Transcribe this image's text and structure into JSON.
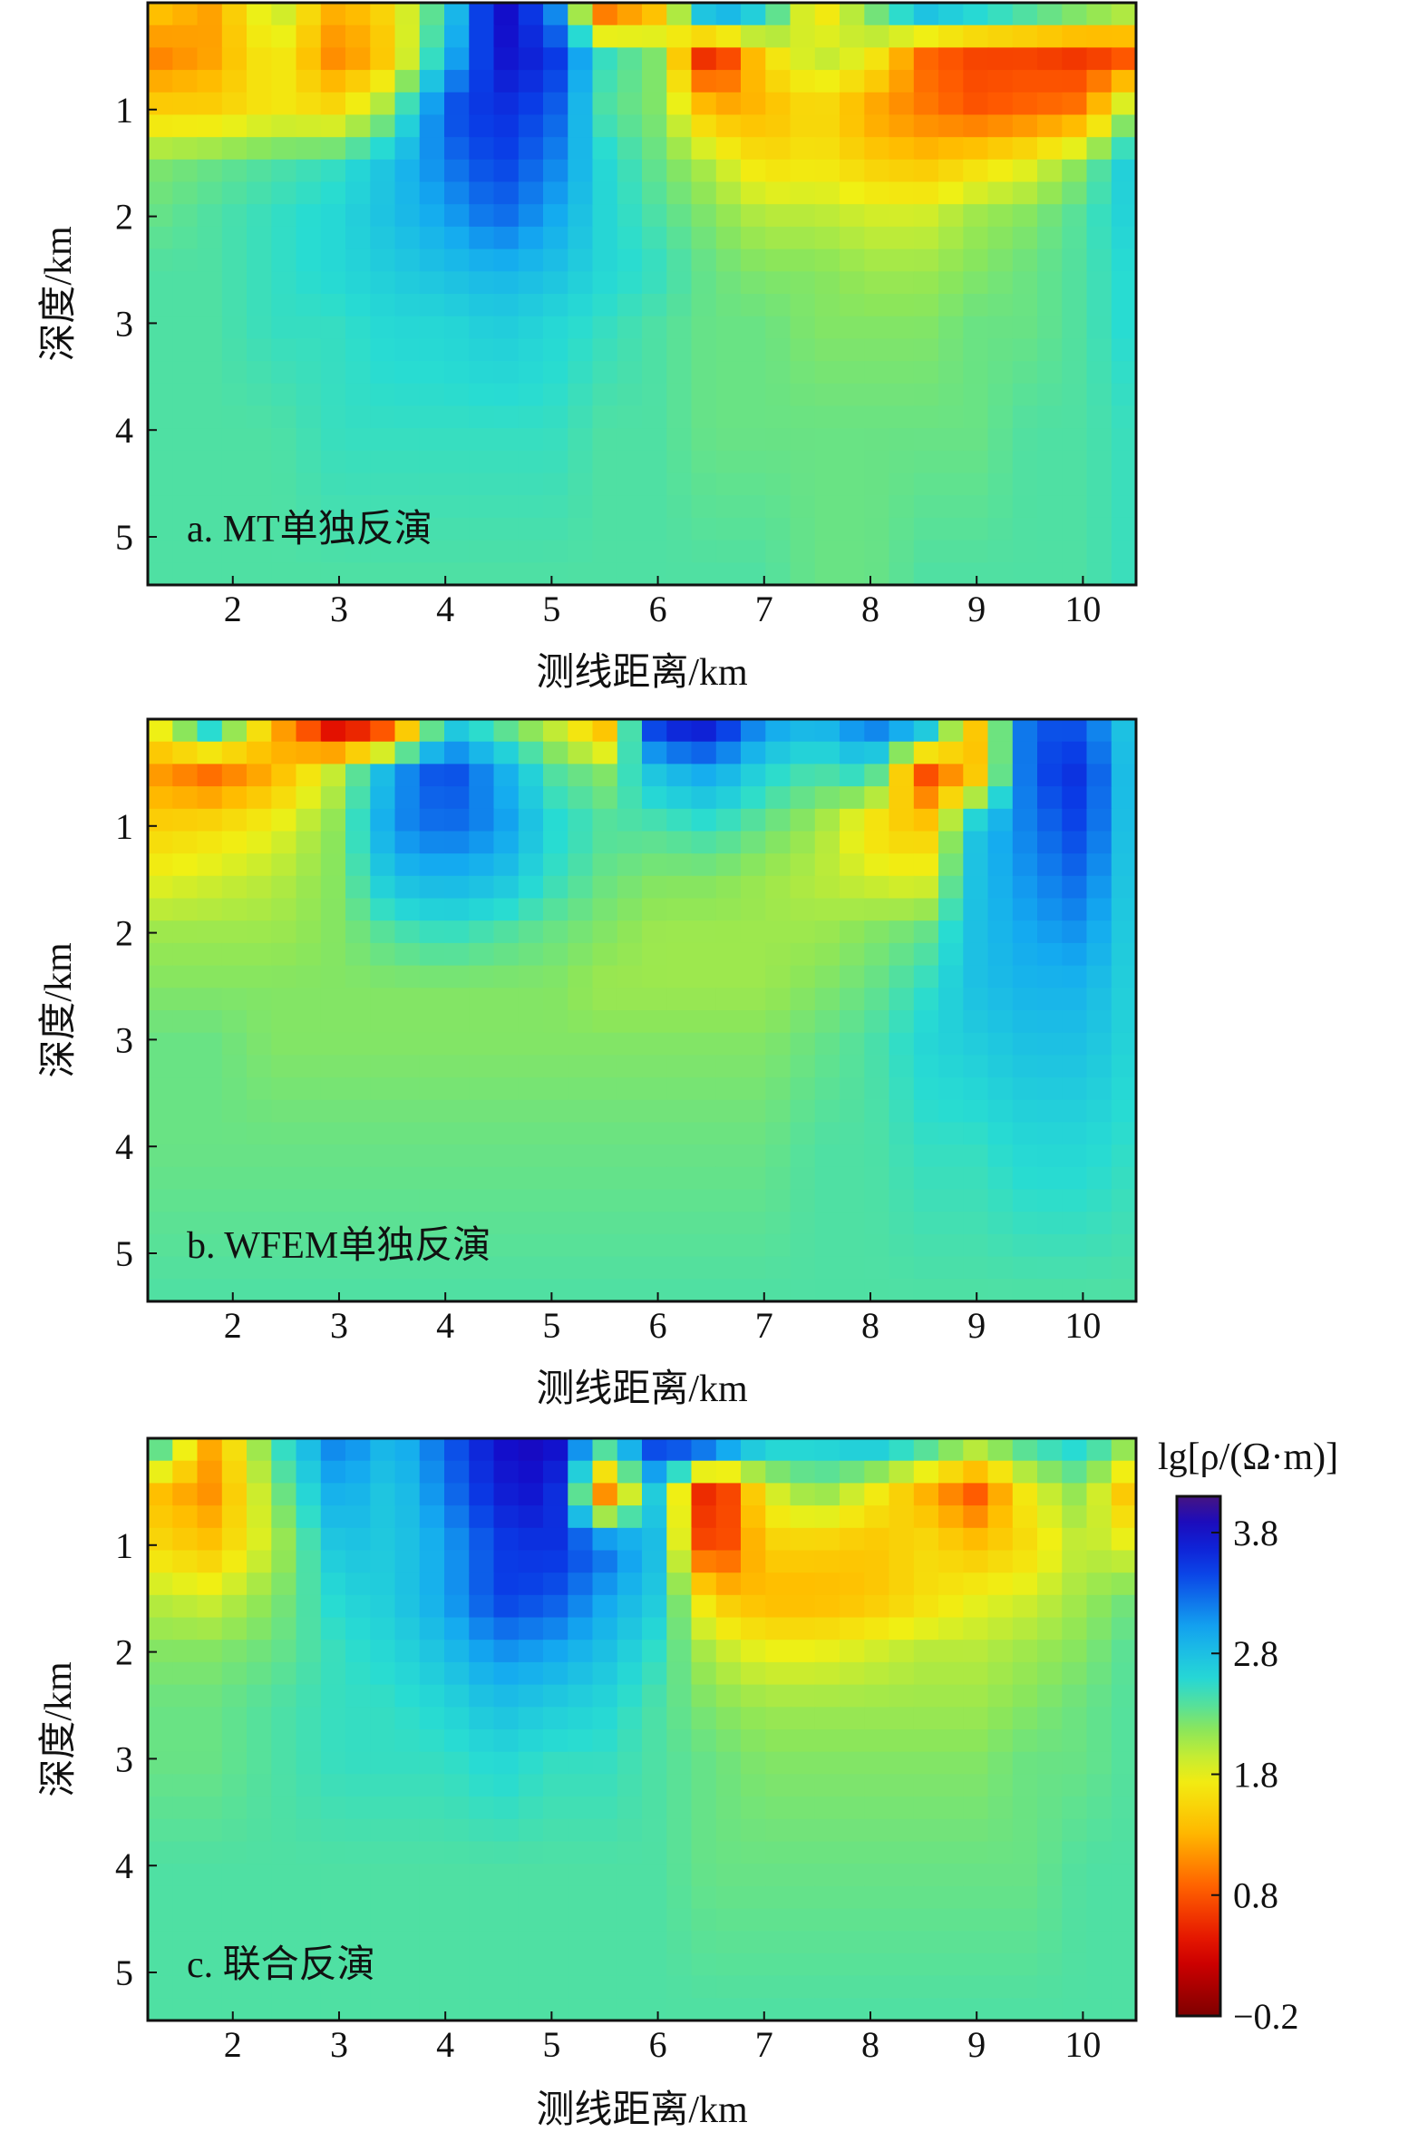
{
  "chart_data": {
    "type": "heatmap",
    "colorbar": {
      "title": "lg[ρ/(Ω·m)]",
      "range": [
        -0.2,
        4.1
      ],
      "ticks": [
        3.8,
        2.8,
        1.8,
        0.8,
        -0.2
      ],
      "tick_labels": [
        "3.8",
        "2.8",
        "1.8",
        "0.8",
        "−0.2"
      ],
      "colormap": "jet-reversed (low = dark red, high = dark blue)"
    },
    "panels": [
      {
        "label": "a. MT单独反演",
        "xlabel": "测线距离/km",
        "ylabel": "深度/km",
        "xlim": [
          1.2,
          10.5
        ],
        "ylim": [
          0,
          5.45
        ],
        "x_ticks": [
          2,
          3,
          4,
          5,
          6,
          7,
          8,
          9,
          10
        ],
        "y_ticks": [
          1,
          2,
          3,
          4,
          5
        ],
        "x_nodes": [
          1.2,
          1.8,
          2.4,
          3.0,
          3.5,
          4.0,
          4.5,
          5.0,
          5.5,
          6.0,
          6.5,
          7.0,
          7.5,
          8.0,
          8.5,
          9.0,
          9.5,
          10.0,
          10.5
        ],
        "z_nodes": [
          0.1,
          0.5,
          1.0,
          1.5,
          2.0,
          2.5,
          3.0,
          4.0,
          5.4
        ],
        "values": [
          [
            1.4,
            1.2,
            2.0,
            1.2,
            1.6,
            2.6,
            3.9,
            3.3,
            1.0,
            1.4,
            3.0,
            2.6,
            1.6,
            2.2,
            2.8,
            2.6,
            2.4,
            2.2,
            2.0
          ],
          [
            1.0,
            1.2,
            1.8,
            1.0,
            1.5,
            2.8,
            3.8,
            3.6,
            2.5,
            2.2,
            0.3,
            1.6,
            2.0,
            1.8,
            0.9,
            0.7,
            0.7,
            0.6,
            0.8
          ],
          [
            1.5,
            1.5,
            1.7,
            1.6,
            2.2,
            3.4,
            3.6,
            3.4,
            2.4,
            2.2,
            1.3,
            1.3,
            1.6,
            1.2,
            1.0,
            0.8,
            0.9,
            1.0,
            2.3
          ],
          [
            2.2,
            2.3,
            2.4,
            2.5,
            2.8,
            3.2,
            3.5,
            3.2,
            2.6,
            2.3,
            2.0,
            1.6,
            1.7,
            1.5,
            1.4,
            1.6,
            1.8,
            2.2,
            2.8
          ],
          [
            2.3,
            2.4,
            2.5,
            2.6,
            2.8,
            3.0,
            3.3,
            3.0,
            2.6,
            2.4,
            2.2,
            2.0,
            2.0,
            1.9,
            1.9,
            2.1,
            2.2,
            2.4,
            2.7
          ],
          [
            2.4,
            2.4,
            2.5,
            2.6,
            2.7,
            2.8,
            2.9,
            2.8,
            2.6,
            2.5,
            2.3,
            2.2,
            2.2,
            2.1,
            2.1,
            2.2,
            2.3,
            2.4,
            2.6
          ],
          [
            2.4,
            2.4,
            2.5,
            2.5,
            2.6,
            2.6,
            2.7,
            2.6,
            2.5,
            2.4,
            2.3,
            2.3,
            2.2,
            2.2,
            2.2,
            2.3,
            2.3,
            2.4,
            2.6
          ],
          [
            2.4,
            2.4,
            2.4,
            2.5,
            2.5,
            2.5,
            2.5,
            2.5,
            2.4,
            2.4,
            2.3,
            2.3,
            2.3,
            2.3,
            2.3,
            2.3,
            2.4,
            2.4,
            2.5
          ],
          [
            2.4,
            2.4,
            2.4,
            2.4,
            2.4,
            2.4,
            2.4,
            2.4,
            2.4,
            2.4,
            2.4,
            2.4,
            2.3,
            2.3,
            2.4,
            2.4,
            2.4,
            2.4,
            2.5
          ]
        ]
      },
      {
        "label": "b. WFEM单独反演",
        "xlabel": "测线距离/km",
        "ylabel": "深度/km",
        "xlim": [
          1.2,
          10.5
        ],
        "ylim": [
          0,
          5.45
        ],
        "x_ticks": [
          2,
          3,
          4,
          5,
          6,
          7,
          8,
          9,
          10
        ],
        "y_ticks": [
          1,
          2,
          3,
          4,
          5
        ],
        "x_nodes": [
          1.2,
          1.8,
          2.4,
          3.0,
          3.5,
          4.0,
          4.5,
          5.0,
          5.5,
          6.0,
          6.5,
          7.0,
          7.5,
          8.0,
          8.5,
          9.0,
          9.5,
          10.0,
          10.5
        ],
        "z_nodes": [
          0.1,
          0.5,
          1.0,
          1.5,
          2.0,
          2.5,
          3.0,
          4.0,
          5.4
        ],
        "values": [
          [
            1.6,
            2.6,
            1.3,
            0.3,
            0.9,
            2.8,
            2.4,
            2.0,
            1.4,
            3.6,
            3.7,
            3.0,
            2.8,
            3.2,
            2.8,
            1.4,
            3.4,
            3.4,
            2.6
          ],
          [
            1.2,
            0.9,
            1.3,
            2.0,
            3.0,
            3.5,
            3.0,
            2.4,
            2.2,
            2.8,
            3.0,
            2.6,
            2.4,
            2.6,
            0.7,
            1.4,
            3.4,
            3.6,
            2.6
          ],
          [
            1.5,
            1.6,
            1.8,
            2.2,
            3.1,
            3.3,
            3.1,
            2.6,
            2.4,
            2.4,
            2.5,
            2.3,
            2.1,
            1.6,
            1.4,
            2.8,
            3.2,
            3.5,
            2.6
          ],
          [
            1.8,
            1.9,
            2.0,
            2.2,
            2.8,
            2.9,
            2.8,
            2.5,
            2.3,
            2.2,
            2.2,
            2.1,
            2.0,
            1.9,
            1.8,
            2.8,
            3.1,
            3.3,
            2.6
          ],
          [
            2.1,
            2.1,
            2.1,
            2.2,
            2.4,
            2.5,
            2.4,
            2.3,
            2.2,
            2.1,
            2.1,
            2.1,
            2.1,
            2.2,
            2.3,
            2.8,
            3.0,
            3.1,
            2.6
          ],
          [
            2.2,
            2.2,
            2.2,
            2.2,
            2.2,
            2.2,
            2.2,
            2.2,
            2.1,
            2.1,
            2.1,
            2.1,
            2.2,
            2.3,
            2.5,
            2.8,
            2.9,
            2.9,
            2.6
          ],
          [
            2.3,
            2.3,
            2.2,
            2.2,
            2.2,
            2.2,
            2.2,
            2.2,
            2.2,
            2.2,
            2.2,
            2.2,
            2.3,
            2.4,
            2.6,
            2.7,
            2.8,
            2.8,
            2.6
          ],
          [
            2.3,
            2.3,
            2.3,
            2.3,
            2.3,
            2.3,
            2.3,
            2.3,
            2.3,
            2.3,
            2.3,
            2.3,
            2.4,
            2.4,
            2.5,
            2.5,
            2.6,
            2.6,
            2.5
          ],
          [
            2.4,
            2.4,
            2.4,
            2.4,
            2.4,
            2.4,
            2.4,
            2.4,
            2.4,
            2.4,
            2.4,
            2.4,
            2.4,
            2.4,
            2.4,
            2.4,
            2.4,
            2.4,
            2.4
          ]
        ]
      },
      {
        "label": "c. 联合反演",
        "xlabel": "测线距离/km",
        "ylabel": "深度/km",
        "xlim": [
          1.2,
          10.5
        ],
        "ylim": [
          0,
          5.45
        ],
        "x_ticks": [
          2,
          3,
          4,
          5,
          6,
          7,
          8,
          9,
          10
        ],
        "y_ticks": [
          1,
          2,
          3,
          4,
          5
        ],
        "x_nodes": [
          1.2,
          1.8,
          2.4,
          3.0,
          3.5,
          4.0,
          4.5,
          5.0,
          5.5,
          6.0,
          6.5,
          7.0,
          7.5,
          8.0,
          8.5,
          9.0,
          9.5,
          10.0,
          10.5
        ],
        "z_nodes": [
          0.1,
          0.5,
          1.0,
          1.5,
          2.0,
          2.5,
          3.0,
          4.0,
          5.4
        ],
        "values": [
          [
            2.6,
            1.2,
            2.4,
            3.2,
            2.8,
            3.3,
            3.8,
            3.9,
            2.4,
            3.5,
            3.2,
            2.6,
            2.6,
            2.7,
            2.4,
            2.0,
            2.4,
            2.6,
            2.0
          ],
          [
            1.4,
            1.1,
            2.2,
            3.0,
            2.7,
            3.2,
            3.7,
            3.8,
            1.0,
            2.8,
            0.2,
            1.8,
            2.2,
            1.8,
            1.3,
            0.8,
            1.8,
            2.2,
            1.2
          ],
          [
            1.6,
            1.4,
            2.0,
            2.8,
            2.7,
            3.0,
            3.5,
            3.6,
            3.3,
            2.8,
            0.4,
            1.5,
            1.5,
            1.4,
            1.6,
            1.4,
            1.6,
            2.0,
            1.8
          ],
          [
            2.0,
            1.9,
            2.2,
            2.6,
            2.7,
            3.0,
            3.5,
            3.4,
            3.0,
            2.7,
            1.5,
            1.3,
            1.3,
            1.4,
            1.6,
            1.8,
            1.9,
            2.1,
            2.3
          ],
          [
            2.2,
            2.2,
            2.3,
            2.5,
            2.6,
            2.8,
            3.1,
            3.0,
            2.8,
            2.5,
            2.0,
            1.8,
            1.8,
            1.9,
            2.0,
            2.0,
            2.1,
            2.2,
            2.4
          ],
          [
            2.3,
            2.3,
            2.4,
            2.5,
            2.5,
            2.6,
            2.8,
            2.7,
            2.6,
            2.4,
            2.2,
            2.1,
            2.1,
            2.1,
            2.1,
            2.1,
            2.2,
            2.3,
            2.4
          ],
          [
            2.3,
            2.3,
            2.4,
            2.5,
            2.5,
            2.5,
            2.6,
            2.5,
            2.5,
            2.4,
            2.3,
            2.2,
            2.2,
            2.2,
            2.2,
            2.2,
            2.3,
            2.3,
            2.4
          ],
          [
            2.4,
            2.4,
            2.4,
            2.4,
            2.4,
            2.4,
            2.4,
            2.4,
            2.4,
            2.4,
            2.3,
            2.3,
            2.3,
            2.3,
            2.3,
            2.3,
            2.3,
            2.4,
            2.4
          ],
          [
            2.4,
            2.4,
            2.4,
            2.4,
            2.4,
            2.4,
            2.4,
            2.4,
            2.4,
            2.4,
            2.4,
            2.4,
            2.4,
            2.4,
            2.4,
            2.4,
            2.4,
            2.4,
            2.4
          ]
        ]
      }
    ]
  }
}
